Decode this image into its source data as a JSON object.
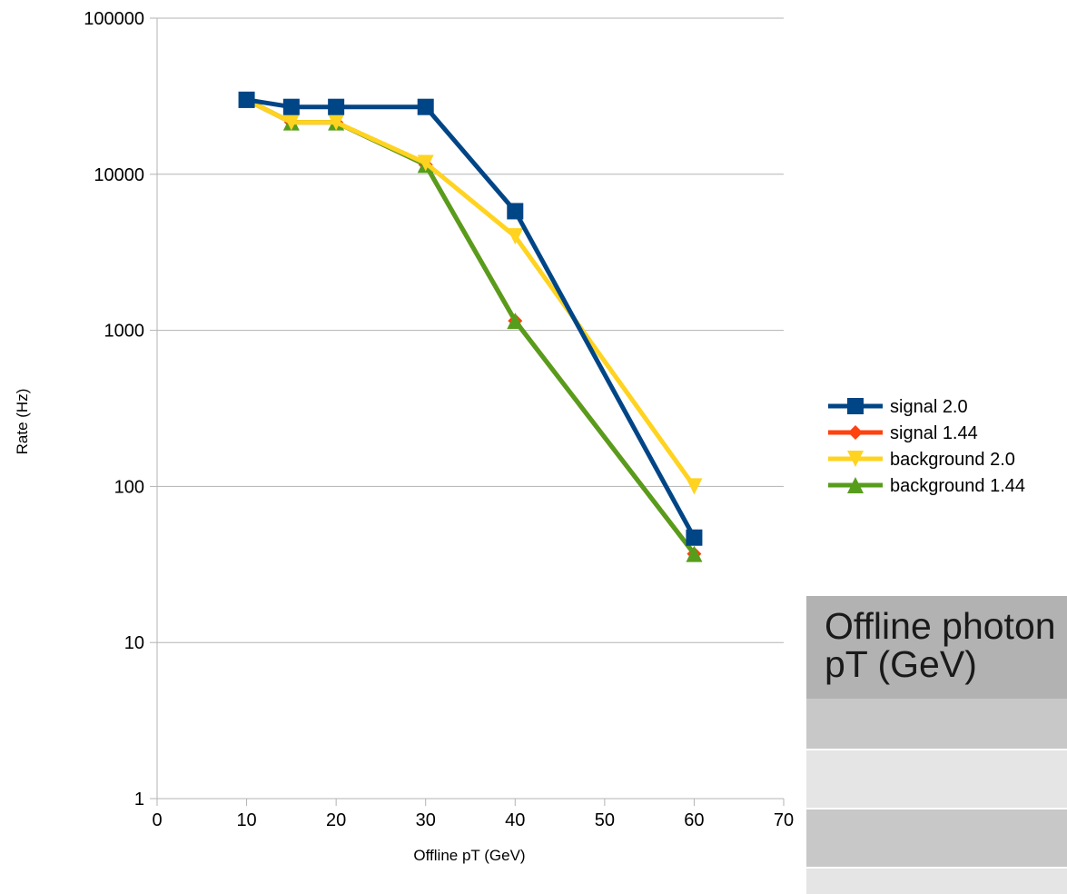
{
  "chart_data": {
    "type": "line",
    "title": "",
    "xlabel": "Offline pT (GeV)",
    "ylabel": "Rate (Hz)",
    "xlim": [
      0,
      70
    ],
    "x_ticks": [
      "0",
      "10",
      "20",
      "30",
      "40",
      "50",
      "60",
      "70"
    ],
    "ylim": [
      1,
      100000
    ],
    "y_scale": "log",
    "y_ticks": [
      "1",
      "10",
      "100",
      "1000",
      "10000",
      "100000"
    ],
    "grid": "horizontal",
    "legend_position": "right",
    "series": [
      {
        "name": "signal 2.0",
        "color": "#004586",
        "marker": "square",
        "x": [
          10,
          15,
          20,
          30,
          40,
          60
        ],
        "y": [
          30000,
          27000,
          27000,
          27000,
          5800,
          47
        ]
      },
      {
        "name": "signal 1.44",
        "color": "#ff420e",
        "marker": "diamond",
        "x": [
          10,
          15,
          20,
          30,
          40,
          60
        ],
        "y": [
          30000,
          21500,
          21500,
          11500,
          1150,
          37
        ]
      },
      {
        "name": "background 2.0",
        "color": "#ffd320",
        "marker": "triangle-down",
        "x": [
          10,
          15,
          20,
          30,
          40,
          60
        ],
        "y": [
          30000,
          21500,
          21500,
          11800,
          4000,
          100
        ]
      },
      {
        "name": "background 1.44",
        "color": "#579d1c",
        "marker": "triangle-up",
        "x": [
          10,
          15,
          20,
          30,
          40,
          60
        ],
        "y": [
          30000,
          21500,
          21500,
          11500,
          1150,
          37
        ]
      }
    ]
  },
  "table": {
    "header": "Offline photon\npT (GeV)",
    "row_colors": [
      "#c8c8c8",
      "#e5e5e5",
      "#c8c8c8",
      "#e5e5e5"
    ]
  }
}
